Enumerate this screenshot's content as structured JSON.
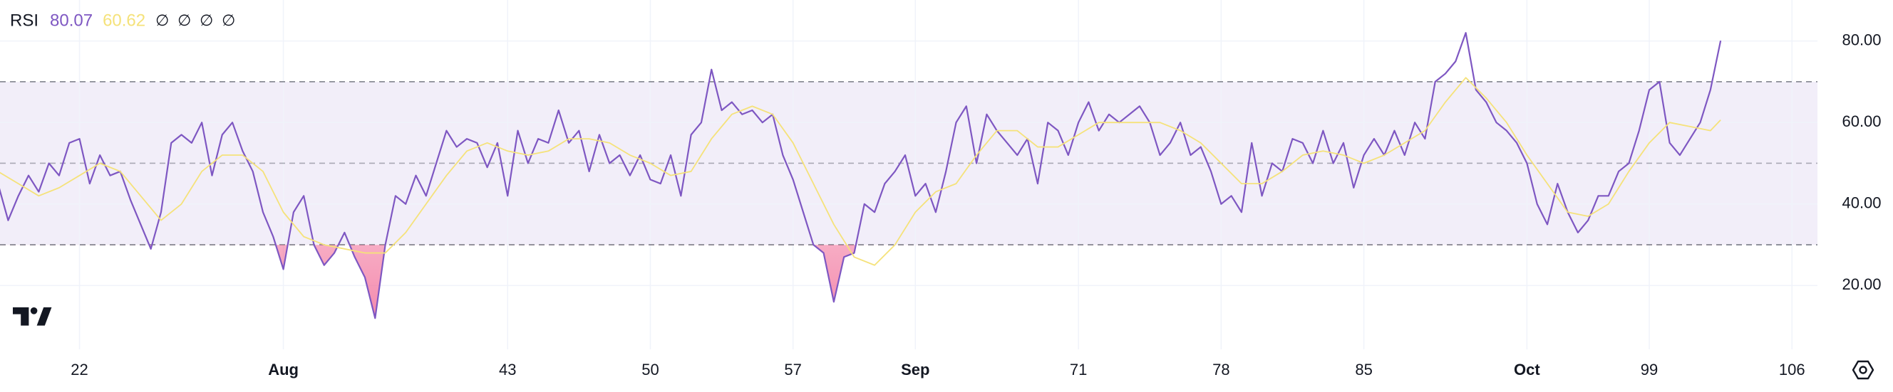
{
  "chart_data": {
    "type": "line",
    "title": "RSI",
    "legend_values": [
      "80.07",
      "60.62"
    ],
    "legend_icons": [
      "∅",
      "∅",
      "∅",
      "∅"
    ],
    "x": [
      18,
      18.5,
      19,
      19.5,
      20,
      20.5,
      21,
      21.5,
      22,
      22.5,
      23,
      23.5,
      24,
      24.5,
      25,
      25.5,
      26,
      26.5,
      27,
      27.5,
      28,
      28.5,
      29,
      29.5,
      30,
      30.5,
      31,
      31.5,
      32,
      32.5,
      33,
      33.5,
      34,
      34.5,
      35,
      35.5,
      36,
      36.5,
      37,
      37.5,
      38,
      38.5,
      39,
      39.5,
      40,
      40.5,
      41,
      41.5,
      42,
      42.5,
      43,
      43.5,
      44,
      44.5,
      45,
      45.5,
      46,
      46.5,
      47,
      47.5,
      48,
      48.5,
      49,
      49.5,
      50,
      50.5,
      51,
      51.5,
      52,
      52.5,
      53,
      53.5,
      54,
      54.5,
      55,
      55.5,
      56,
      56.5,
      57,
      57.5,
      58,
      58.5,
      59,
      59.5,
      60,
      60.5,
      61,
      61.5,
      62,
      62.5,
      63,
      63.5,
      64,
      64.5,
      65,
      65.5,
      66,
      66.5,
      67,
      67.5,
      68,
      68.5,
      69,
      69.5,
      70,
      70.5,
      71,
      71.5,
      72,
      72.5,
      73,
      73.5,
      74,
      74.5,
      75,
      75.5,
      76,
      76.5,
      77,
      77.5,
      78,
      78.5,
      79,
      79.5,
      80,
      80.5,
      81,
      81.5,
      82,
      82.5,
      83,
      83.5,
      84,
      84.5,
      85,
      85.5,
      86,
      86.5,
      87,
      87.5,
      88,
      88.5,
      89,
      89.5,
      90,
      90.5,
      91,
      91.5,
      92,
      92.5,
      93,
      93.5,
      94,
      94.5,
      95,
      95.5,
      96,
      96.5,
      97,
      97.5,
      98,
      98.5,
      99,
      99.5,
      100,
      100.5,
      101,
      101.5,
      102,
      102.5
    ],
    "series": [
      {
        "color": "#7e57c2",
        "values": [
          45,
          36,
          42,
          47,
          43,
          50,
          47,
          55,
          56,
          45,
          52,
          47,
          48,
          41,
          35,
          29,
          38,
          55,
          57,
          55,
          60,
          47,
          57,
          60,
          53,
          48,
          38,
          32,
          24,
          38,
          42,
          30,
          25,
          28,
          33,
          27,
          22,
          12,
          30,
          42,
          40,
          47,
          42,
          50,
          58,
          54,
          56,
          55,
          49,
          55,
          42,
          58,
          50,
          56,
          55,
          63,
          55,
          58,
          48,
          57,
          50,
          52,
          47,
          52,
          46,
          45,
          52,
          42,
          57,
          60,
          73,
          63,
          65,
          62,
          63,
          60,
          62,
          52,
          46,
          38,
          30,
          28,
          16,
          27,
          28,
          40,
          38,
          45,
          48,
          52,
          42,
          45,
          38,
          48,
          60,
          64,
          50,
          62,
          58,
          55,
          52,
          56,
          45,
          60,
          58,
          52,
          60,
          65,
          58,
          62,
          60,
          62,
          64,
          60,
          52,
          55,
          60,
          52,
          54,
          48,
          40,
          42,
          38,
          55,
          42,
          50,
          48,
          56,
          55,
          50,
          58,
          50,
          55,
          44,
          52,
          56,
          52,
          58,
          52,
          60,
          56,
          70,
          72,
          75,
          82,
          68,
          65,
          60,
          58,
          55,
          50,
          40,
          35,
          45,
          38,
          33,
          36,
          42,
          42,
          48,
          50,
          58,
          68,
          70,
          55,
          52,
          56,
          60,
          68,
          80.07
        ]
      },
      {
        "color": "#f5e27a",
        "x": [
          18,
          19,
          20,
          21,
          22,
          23,
          24,
          25,
          26,
          27,
          28,
          29,
          30,
          31,
          32,
          33,
          34,
          35,
          36,
          37,
          38,
          39,
          40,
          41,
          42,
          43,
          44,
          45,
          46,
          47,
          48,
          49,
          50,
          51,
          52,
          53,
          54,
          55,
          56,
          57,
          58,
          59,
          60,
          61,
          62,
          63,
          64,
          65,
          66,
          67,
          68,
          69,
          70,
          71,
          72,
          73,
          74,
          75,
          76,
          77,
          78,
          79,
          80,
          81,
          82,
          83,
          84,
          85,
          86,
          87,
          88,
          89,
          90,
          91,
          92,
          93,
          94,
          95,
          96,
          97,
          98,
          99,
          100,
          101,
          102,
          102.5
        ],
        "values": [
          48,
          45,
          42,
          44,
          47,
          50,
          48,
          42,
          36,
          40,
          48,
          52,
          52,
          48,
          38,
          32,
          30,
          29,
          28,
          28,
          33,
          40,
          47,
          53,
          55,
          53,
          52,
          53,
          56,
          56,
          55,
          52,
          50,
          47,
          48,
          56,
          62,
          64,
          62,
          55,
          45,
          35,
          27,
          25,
          30,
          38,
          43,
          45,
          52,
          58,
          58,
          54,
          54,
          57,
          60,
          60,
          60,
          60,
          58,
          55,
          50,
          45,
          45,
          48,
          52,
          53,
          52,
          50,
          52,
          55,
          58,
          65,
          71,
          66,
          60,
          52,
          45,
          38,
          37,
          40,
          48,
          55,
          60,
          59,
          58,
          60.62
        ]
      }
    ],
    "xlim": [
      18.1,
      107.25
    ],
    "xticks": [
      22,
      {
        "value": 32,
        "label": "Aug"
      },
      43,
      50,
      57,
      {
        "value": 63,
        "label": "Sep"
      },
      71,
      78,
      85,
      {
        "value": 93,
        "label": "Oct"
      },
      99,
      106
    ],
    "ylim": [
      4.36,
      90.05
    ],
    "yticks": [
      {
        "value": 80,
        "label": "80.00"
      },
      {
        "value": 60,
        "label": "60.00"
      },
      {
        "value": 40,
        "label": "40.00"
      },
      {
        "value": 20,
        "label": "20.00"
      }
    ],
    "band": [
      30,
      70
    ],
    "hlines": [
      70,
      50,
      30
    ],
    "oversold": 30,
    "grid": true
  }
}
